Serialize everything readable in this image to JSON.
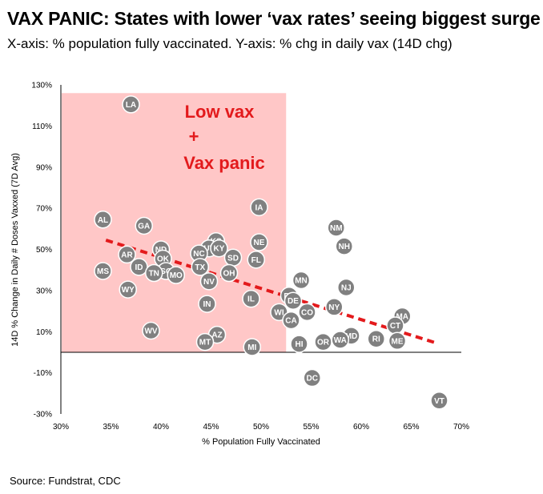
{
  "header": {
    "title": "VAX PANIC: States with lower ‘vax rates’ seeing biggest surge",
    "subtitle": "X-axis: % population fully vaccinated.  Y-axis: % chg in daily vax (14D chg)"
  },
  "footer": {
    "source": "Source: Fundstrat, CDC"
  },
  "colors": {
    "marker": "#808080",
    "highlight": "#ffc7c7",
    "trend": "#e31a1c",
    "annotation": "#e31a1c"
  },
  "chart_data": {
    "type": "scatter",
    "title": "VAX PANIC: States with lower ‘vax rates’ seeing biggest surge",
    "xlabel": "% Population Fully Vaccinated",
    "ylabel": "14D % Change in Daily # Doses Vaxxed (7D Avg)",
    "xlim": [
      30,
      70
    ],
    "ylim": [
      -30,
      130
    ],
    "x_ticks": [
      30,
      35,
      40,
      45,
      50,
      55,
      60,
      65,
      70
    ],
    "y_ticks": [
      -30,
      -10,
      10,
      30,
      50,
      70,
      90,
      110,
      130
    ],
    "x_tick_labels": [
      "30%",
      "35%",
      "40%",
      "45%",
      "50%",
      "55%",
      "60%",
      "65%",
      "70%"
    ],
    "y_tick_labels": [
      "-30%",
      "-10%",
      "10%",
      "30%",
      "50%",
      "70%",
      "90%",
      "110%",
      "130%"
    ],
    "grid": false,
    "highlight_region": {
      "x": [
        30,
        52.5
      ],
      "y": [
        0,
        126
      ],
      "label_lines": [
        "Low vax",
        "+",
        "Vax panic"
      ]
    },
    "trendline": {
      "x": [
        34.5,
        67.5
      ],
      "y": [
        54.5,
        4.5
      ],
      "style": "dashed"
    },
    "points": [
      {
        "label": "LA",
        "x": 37.0,
        "y": 120.5
      },
      {
        "label": "AL",
        "x": 34.2,
        "y": 64.5
      },
      {
        "label": "GA",
        "x": 38.3,
        "y": 61.5
      },
      {
        "label": "IA",
        "x": 49.8,
        "y": 70.5
      },
      {
        "label": "NM",
        "x": 57.5,
        "y": 60.5
      },
      {
        "label": "NH",
        "x": 58.3,
        "y": 51.5
      },
      {
        "label": "KS",
        "x": 45.5,
        "y": 54.0
      },
      {
        "label": "NE",
        "x": 49.8,
        "y": 53.5
      },
      {
        "label": "UT",
        "x": 44.8,
        "y": 50.5
      },
      {
        "label": "KY",
        "x": 45.8,
        "y": 50.5
      },
      {
        "label": "ND",
        "x": 40.0,
        "y": 50.0
      },
      {
        "label": "AR",
        "x": 36.6,
        "y": 47.5
      },
      {
        "label": "NC",
        "x": 43.8,
        "y": 48.0
      },
      {
        "label": "OK",
        "x": 40.2,
        "y": 45.5
      },
      {
        "label": "SD",
        "x": 47.2,
        "y": 46.0
      },
      {
        "label": "FL",
        "x": 49.5,
        "y": 45.0
      },
      {
        "label": "ID",
        "x": 37.8,
        "y": 41.5
      },
      {
        "label": "TX",
        "x": 43.9,
        "y": 41.5
      },
      {
        "label": "SC",
        "x": 40.5,
        "y": 39.5
      },
      {
        "label": "MS",
        "x": 34.2,
        "y": 39.5
      },
      {
        "label": "TN",
        "x": 39.3,
        "y": 38.5
      },
      {
        "label": "MO",
        "x": 41.5,
        "y": 37.5
      },
      {
        "label": "OH",
        "x": 46.8,
        "y": 38.5
      },
      {
        "label": "NV",
        "x": 44.8,
        "y": 34.5
      },
      {
        "label": "MN",
        "x": 54.0,
        "y": 35.0
      },
      {
        "label": "NJ",
        "x": 58.5,
        "y": 31.5
      },
      {
        "label": "WY",
        "x": 36.7,
        "y": 30.5
      },
      {
        "label": "PA",
        "x": 52.8,
        "y": 27.5
      },
      {
        "label": "IL",
        "x": 49.0,
        "y": 26.0
      },
      {
        "label": "DE",
        "x": 53.2,
        "y": 25.0
      },
      {
        "label": "IN",
        "x": 44.6,
        "y": 23.5
      },
      {
        "label": "NY",
        "x": 57.3,
        "y": 22.0
      },
      {
        "label": "WI",
        "x": 51.8,
        "y": 19.5
      },
      {
        "label": "CO",
        "x": 54.6,
        "y": 19.5
      },
      {
        "label": "MA",
        "x": 64.1,
        "y": 17.5
      },
      {
        "label": "CA",
        "x": 53.0,
        "y": 15.5
      },
      {
        "label": "CT",
        "x": 63.4,
        "y": 13.0
      },
      {
        "label": "WV",
        "x": 39.0,
        "y": 10.5
      },
      {
        "label": "AZ",
        "x": 45.6,
        "y": 8.5
      },
      {
        "label": "MD",
        "x": 59.0,
        "y": 8.0
      },
      {
        "label": "RI",
        "x": 61.5,
        "y": 6.5
      },
      {
        "label": "WA",
        "x": 57.9,
        "y": 6.0
      },
      {
        "label": "ME",
        "x": 63.6,
        "y": 5.5
      },
      {
        "label": "MT",
        "x": 44.4,
        "y": 5.0
      },
      {
        "label": "OR",
        "x": 56.2,
        "y": 5.0
      },
      {
        "label": "HI",
        "x": 53.8,
        "y": 4.0
      },
      {
        "label": "MI",
        "x": 49.1,
        "y": 2.5
      },
      {
        "label": "DC",
        "x": 55.1,
        "y": -12.5
      },
      {
        "label": "VT",
        "x": 67.8,
        "y": -23.5
      }
    ]
  }
}
